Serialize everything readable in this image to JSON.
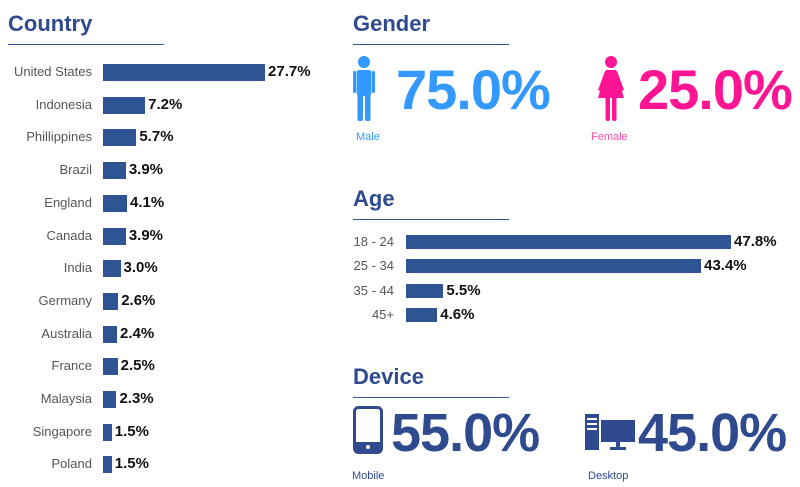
{
  "colors": {
    "navy": "#2f4a8f",
    "bar": "#2f5494",
    "male": "#3399ff",
    "female": "#ff1493"
  },
  "country": {
    "title": "Country"
  },
  "gender": {
    "title": "Gender",
    "male_label": "Male",
    "male_value": "75.0%",
    "female_label": "Female",
    "female_value": "25.0%"
  },
  "age": {
    "title": "Age"
  },
  "device": {
    "title": "Device",
    "mobile_label": "Mobile",
    "mobile_value": "55.0%",
    "desktop_label": "Desktop",
    "desktop_value": "45.0%"
  },
  "chart_data": [
    {
      "type": "bar",
      "title": "Country",
      "orientation": "horizontal",
      "categories": [
        "United States",
        "Indonesia",
        "Phillippines",
        "Brazil",
        "England",
        "Canada",
        "India",
        "Germany",
        "Australia",
        "France",
        "Malaysia",
        "Singapore",
        "Poland"
      ],
      "values": [
        27.7,
        7.2,
        5.7,
        3.9,
        4.1,
        3.9,
        3.0,
        2.6,
        2.4,
        2.5,
        2.3,
        1.5,
        1.5
      ],
      "labels": [
        "27.7%",
        "7.2%",
        "5.7%",
        "3.9%",
        "4.1%",
        "3.9%",
        "3.0%",
        "2.6%",
        "2.4%",
        "2.5%",
        "2.3%",
        "1.5%",
        "1.5%"
      ]
    },
    {
      "type": "bar",
      "title": "Age",
      "orientation": "horizontal",
      "categories": [
        "18 - 24",
        "25 - 34",
        "35 - 44",
        "45+"
      ],
      "values": [
        47.8,
        43.4,
        5.5,
        4.6
      ],
      "labels": [
        "47.8%",
        "43.4%",
        "5.5%",
        "4.6%"
      ]
    }
  ]
}
